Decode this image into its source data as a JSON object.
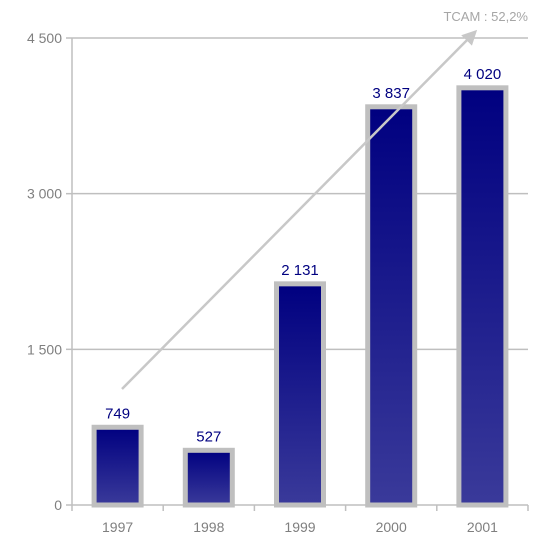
{
  "chart_data": {
    "type": "bar",
    "categories": [
      "1997",
      "1998",
      "1999",
      "2000",
      "2001"
    ],
    "values": [
      749,
      527,
      2131,
      3837,
      4020
    ],
    "value_labels": [
      "749",
      "527",
      "2 131",
      "3 837",
      "4 020"
    ],
    "ylim": [
      0,
      4500
    ],
    "y_ticks": [
      0,
      1500,
      3000,
      4500
    ],
    "y_tick_labels": [
      "0",
      "1 500",
      "3 000",
      "4 500"
    ],
    "grid": true,
    "title": "",
    "xlabel": "",
    "ylabel": "",
    "annotation": "TCAM : 52,2%",
    "colors": {
      "bar_top": "#000080",
      "bar_bottom": "#3a3a9a",
      "bar_border": "#bfbfbf",
      "grid": "#bfbfbf",
      "arrow": "#c8c8c8",
      "annotation": "#a6a6a6",
      "value_label": "#000080",
      "tick_label": "#7f7f7f"
    }
  }
}
